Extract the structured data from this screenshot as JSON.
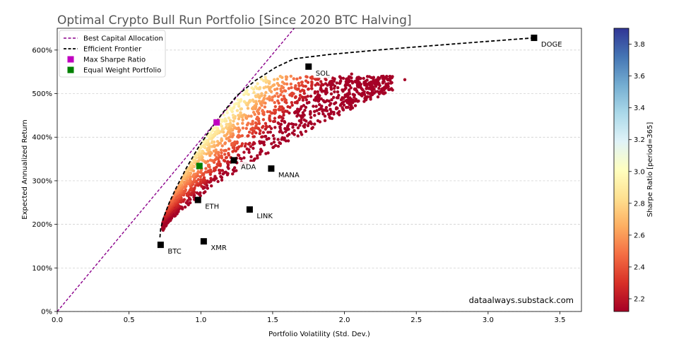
{
  "chart_data": {
    "type": "scatter",
    "title": "Optimal Crypto Bull Run Portfolio [Since 2020 BTC Halving]",
    "xlabel": "Portfolio Volatility (Std. Dev.)",
    "ylabel": "Expected Annualized Return",
    "xlim": [
      0.0,
      3.65
    ],
    "ylim": [
      0,
      650
    ],
    "x_ticks": [
      0.0,
      0.5,
      1.0,
      1.5,
      2.0,
      2.5,
      3.0,
      3.5
    ],
    "x_tick_labels": [
      "0.0",
      "0.5",
      "1.0",
      "1.5",
      "2.0",
      "2.5",
      "3.0",
      "3.5"
    ],
    "y_ticks": [
      0,
      100,
      200,
      300,
      400,
      500,
      600
    ],
    "y_tick_labels": [
      "0%",
      "100%",
      "200%",
      "300%",
      "400%",
      "500%",
      "600%"
    ],
    "grid": "horizontal dashed",
    "legend_position": "top-left",
    "legend": [
      {
        "label": "Best Capital Allocation",
        "style": "dashed-line",
        "color": "#8b008b"
      },
      {
        "label": "Efficient Frontier",
        "style": "dashed-line",
        "color": "#000000"
      },
      {
        "label": "Max Sharpe Ratio",
        "style": "square",
        "color": "#c000c0"
      },
      {
        "label": "Equal Weight Portfolio",
        "style": "square",
        "color": "#008000"
      }
    ],
    "assets": [
      {
        "name": "BTC",
        "x": 0.72,
        "y": 153
      },
      {
        "name": "ETH",
        "x": 0.98,
        "y": 256
      },
      {
        "name": "ADA",
        "x": 1.23,
        "y": 347
      },
      {
        "name": "MANA",
        "x": 1.49,
        "y": 328
      },
      {
        "name": "LINK",
        "x": 1.34,
        "y": 234
      },
      {
        "name": "XMR",
        "x": 1.02,
        "y": 161
      },
      {
        "name": "SOL",
        "x": 1.75,
        "y": 562
      },
      {
        "name": "DOGE",
        "x": 3.32,
        "y": 628
      }
    ],
    "max_sharpe": {
      "x": 1.11,
      "y": 434
    },
    "equal_weight": {
      "x": 0.99,
      "y": 334
    },
    "capital_allocation_line": [
      [
        0.0,
        0
      ],
      [
        1.65,
        650
      ]
    ],
    "efficient_frontier": [
      [
        0.715,
        170
      ],
      [
        0.72,
        190
      ],
      [
        0.74,
        215
      ],
      [
        0.78,
        250
      ],
      [
        0.83,
        285
      ],
      [
        0.9,
        330
      ],
      [
        0.98,
        375
      ],
      [
        1.06,
        415
      ],
      [
        1.15,
        455
      ],
      [
        1.25,
        495
      ],
      [
        1.38,
        530
      ],
      [
        1.52,
        560
      ],
      [
        1.65,
        580
      ],
      [
        1.9,
        590
      ],
      [
        2.3,
        602
      ],
      [
        2.8,
        615
      ],
      [
        3.32,
        628
      ]
    ],
    "cloud": {
      "x_range": [
        0.73,
        2.45
      ],
      "y_range": [
        180,
        545
      ],
      "points_rendered": 1700
    },
    "colorbar": {
      "label": "Sharpe Ratio [period=365]",
      "range": [
        2.12,
        3.9
      ],
      "ticks": [
        2.2,
        2.4,
        2.6,
        2.8,
        3.0,
        3.2,
        3.4,
        3.6,
        3.8
      ],
      "tick_labels": [
        "2.2",
        "2.4",
        "2.6",
        "2.8",
        "3.0",
        "3.2",
        "3.4",
        "3.6",
        "3.8"
      ],
      "colormap": "RdYlBu"
    },
    "annotation": "dataalways.substack.com"
  }
}
